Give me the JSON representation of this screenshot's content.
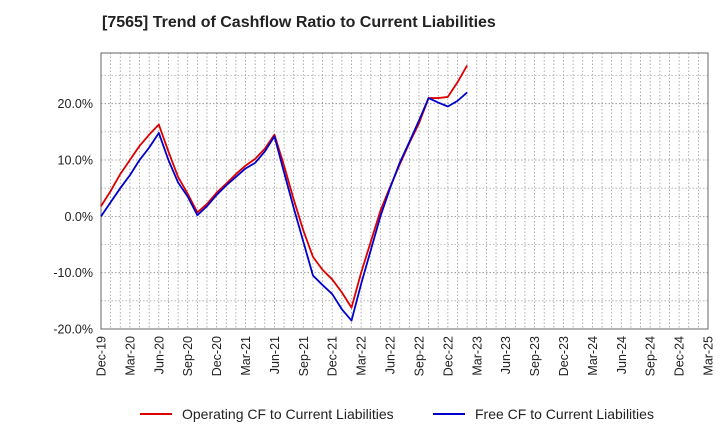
{
  "chart_data": {
    "type": "line",
    "title": "[7565]  Trend of Cashflow Ratio to Current Liabilities",
    "xlabel": "",
    "ylabel": "",
    "x_tick_labels": [
      "Dec-19",
      "Mar-20",
      "Jun-20",
      "Sep-20",
      "Dec-20",
      "Mar-21",
      "Jun-21",
      "Sep-21",
      "Dec-21",
      "Mar-22",
      "Jun-22",
      "Sep-22",
      "Dec-22",
      "Mar-23",
      "Jun-23",
      "Sep-23",
      "Dec-23",
      "Mar-24",
      "Jun-24",
      "Sep-24",
      "Dec-24",
      "Mar-25"
    ],
    "y_ticks": [
      -20,
      -10,
      0,
      10,
      20
    ],
    "y_tick_labels": [
      "-20.0%",
      "-10.0%",
      "0.0%",
      "10.0%",
      "20.0%"
    ],
    "ylim": [
      -20,
      29
    ],
    "grid": true,
    "legend_position": "bottom",
    "series": [
      {
        "name": "Operating CF to Current Liabilities",
        "color": "#dd0000",
        "values": [
          1.8,
          4.5,
          7.5,
          10.0,
          12.5,
          14.5,
          16.3,
          11.5,
          7.0,
          4.0,
          0.7,
          2.2,
          4.2,
          5.8,
          7.5,
          9.0,
          10.2,
          12.0,
          14.5,
          9.0,
          3.0,
          -2.5,
          -7.2,
          -9.5,
          -11.2,
          -13.5,
          -16.2,
          -10.0,
          -4.5,
          1.0,
          5.2,
          9.2,
          13.0,
          16.5,
          21.0,
          21.0,
          21.2,
          23.8,
          26.8
        ]
      },
      {
        "name": "Free CF to Current Liabilities",
        "color": "#0000cc",
        "values": [
          0.0,
          2.5,
          5.0,
          7.3,
          10.0,
          12.2,
          14.8,
          10.0,
          6.0,
          3.5,
          0.2,
          1.8,
          3.8,
          5.5,
          7.0,
          8.5,
          9.5,
          11.5,
          14.2,
          7.8,
          1.5,
          -4.5,
          -10.5,
          -12.2,
          -13.8,
          -16.5,
          -18.5,
          -12.0,
          -6.0,
          0.0,
          5.0,
          9.5,
          13.2,
          17.0,
          21.0,
          20.2,
          19.5,
          20.5,
          22.0
        ]
      }
    ]
  }
}
